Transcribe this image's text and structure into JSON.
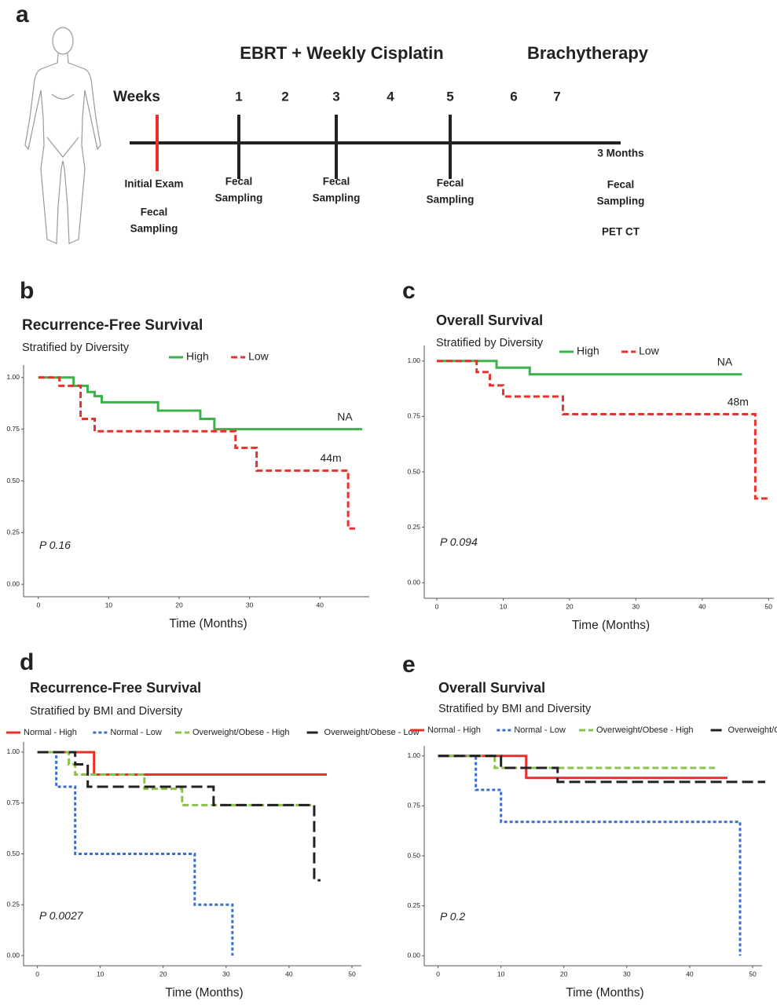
{
  "timeline": {
    "panel": "a",
    "phase_1": "EBRT + Weekly Cisplatin",
    "phase_2": "Brachytherapy",
    "weeks_label": "Weeks",
    "weeks": [
      1,
      2,
      3,
      4,
      5,
      6,
      7
    ],
    "events": [
      {
        "color": "#e8312a",
        "labels": [
          [
            "Initial Exam"
          ],
          [
            "Fecal",
            "Sampling"
          ]
        ]
      },
      {
        "color": "#222222",
        "labels": [
          [
            "Fecal",
            "Sampling"
          ]
        ]
      },
      {
        "color": "#222222",
        "labels": [
          [
            "Fecal",
            "Sampling"
          ]
        ]
      },
      {
        "color": "#222222",
        "labels": [
          [
            "Fecal",
            "Sampling"
          ]
        ]
      },
      {
        "labels": [
          [
            "3 Months"
          ],
          [
            "Fecal",
            "Sampling"
          ],
          [
            "PET CT"
          ]
        ]
      }
    ]
  },
  "chart_data": [
    {
      "type": "step",
      "panel": "b",
      "title": "Recurrence-Free Survival",
      "subtitle": "Stratified by Diversity",
      "x_label": "Time (Months)",
      "p_label": "P 0.16",
      "grid": false,
      "xlim": [
        -2.1,
        47
      ],
      "ylim": [
        -0.06,
        1.06
      ],
      "xticks": [
        0,
        10,
        20,
        30,
        40
      ],
      "yticks": [
        {
          "value": 0,
          "label": "0.00"
        },
        {
          "value": 0.25,
          "label": "0.25"
        },
        {
          "value": 0.5,
          "label": "0.50"
        },
        {
          "value": 0.75,
          "label": "0.75"
        },
        {
          "value": 1,
          "label": "1.00"
        }
      ],
      "series": [
        {
          "name": "High",
          "color": "#3cb34a",
          "dash": "solid",
          "end_label": "NA",
          "x": [
            0,
            5,
            7,
            8,
            9,
            17,
            23,
            25,
            46
          ],
          "values": [
            1,
            0.96,
            0.93,
            0.91,
            0.88,
            0.84,
            0.8,
            0.75,
            0.75
          ]
        },
        {
          "name": "Low",
          "color": "#e8312a",
          "dash": "dashed",
          "end_label": "44m",
          "x": [
            0,
            3,
            6,
            8,
            28,
            31,
            44,
            45
          ],
          "values": [
            1,
            0.96,
            0.8,
            0.74,
            0.66,
            0.55,
            0.27,
            0.27
          ]
        }
      ]
    },
    {
      "type": "step",
      "panel": "c",
      "title": "Overall Survival",
      "subtitle": "Stratified by Diversity",
      "x_label": "Time (Months)",
      "p_label": "P 0.094",
      "grid": false,
      "xlim": [
        -1.9,
        50.8
      ],
      "ylim": [
        -0.07,
        1.07
      ],
      "xticks": [
        0,
        10,
        20,
        30,
        40,
        50
      ],
      "yticks": [
        {
          "value": 0,
          "label": "0.00"
        },
        {
          "value": 0.25,
          "label": "0.25"
        },
        {
          "value": 0.5,
          "label": "0.50"
        },
        {
          "value": 0.75,
          "label": "0.75"
        },
        {
          "value": 1,
          "label": "1.00"
        }
      ],
      "series": [
        {
          "name": "High",
          "color": "#3cb34a",
          "dash": "solid",
          "end_label": "NA",
          "x": [
            0,
            9,
            14,
            46
          ],
          "values": [
            1,
            0.97,
            0.94,
            0.94
          ]
        },
        {
          "name": "Low",
          "color": "#e8312a",
          "dash": "dashed",
          "end_label": "48m",
          "x": [
            0,
            6,
            8,
            10,
            19,
            48,
            50
          ],
          "values": [
            1,
            0.95,
            0.89,
            0.84,
            0.76,
            0.38,
            0.38
          ]
        }
      ]
    },
    {
      "type": "step",
      "panel": "d",
      "title": "Recurrence-Free Survival",
      "subtitle": "Stratified by BMI and Diversity",
      "x_label": "Time (Months)",
      "p_label": "P 0.0027",
      "grid": false,
      "xlim": [
        -2.2,
        51.5
      ],
      "ylim": [
        -0.05,
        1.05
      ],
      "xticks": [
        0,
        10,
        20,
        30,
        40,
        50
      ],
      "yticks": [
        {
          "value": 0,
          "label": "0.00"
        },
        {
          "value": 0.25,
          "label": "0.25"
        },
        {
          "value": 0.5,
          "label": "0.50"
        },
        {
          "value": 0.75,
          "label": "0.75"
        },
        {
          "value": 1,
          "label": "1.00"
        }
      ],
      "series": [
        {
          "name": "Normal - High",
          "color": "#e8312a",
          "dash": "solid",
          "x": [
            0,
            9,
            46
          ],
          "values": [
            1,
            0.89,
            0.89
          ]
        },
        {
          "name": "Normal - Low",
          "color": "#3b6fc4",
          "dash": "dotted",
          "x": [
            0,
            3,
            6,
            25,
            31
          ],
          "values": [
            1,
            0.83,
            0.5,
            0.25,
            0
          ]
        },
        {
          "name": "Overweight/Obese - High",
          "color": "#8bc34a",
          "dash": "dashed",
          "x": [
            0,
            5,
            6,
            17,
            23,
            44
          ],
          "values": [
            1,
            0.94,
            0.89,
            0.82,
            0.74,
            0.74
          ]
        },
        {
          "name": "Overweight/Obese - Low",
          "color": "#222222",
          "dash": "longdash",
          "x": [
            0,
            6,
            8,
            28,
            44,
            45
          ],
          "values": [
            1,
            0.94,
            0.83,
            0.74,
            0.37,
            0.37
          ]
        }
      ]
    },
    {
      "type": "step",
      "panel": "e",
      "title": "Overall Survival",
      "subtitle": "Stratified by BMI and Diversity",
      "x_label": "Time (Months)",
      "p_label": "P 0.2",
      "grid": false,
      "xlim": [
        -2.2,
        51.5
      ],
      "ylim": [
        -0.05,
        1.05
      ],
      "xticks": [
        0,
        10,
        20,
        30,
        40,
        50
      ],
      "yticks": [
        {
          "value": 0,
          "label": "0.00"
        },
        {
          "value": 0.25,
          "label": "0.25"
        },
        {
          "value": 0.5,
          "label": "0.50"
        },
        {
          "value": 0.75,
          "label": "0.75"
        },
        {
          "value": 1,
          "label": "1.00"
        }
      ],
      "series": [
        {
          "name": "Normal - High",
          "color": "#e8312a",
          "dash": "solid",
          "x": [
            0,
            14,
            46
          ],
          "values": [
            1,
            0.89,
            0.89
          ]
        },
        {
          "name": "Normal - Low",
          "color": "#3b6fc4",
          "dash": "dotted",
          "x": [
            0,
            6,
            10,
            48
          ],
          "values": [
            1,
            0.83,
            0.67,
            0
          ]
        },
        {
          "name": "Overweight/Obese - High",
          "color": "#8bc34a",
          "dash": "dashed",
          "x": [
            0,
            9,
            44
          ],
          "values": [
            1,
            0.94,
            0.94
          ]
        },
        {
          "name": "Overweight/Obese - Low",
          "color": "#222222",
          "dash": "longdash",
          "x": [
            0,
            10,
            19,
            52
          ],
          "values": [
            1,
            0.94,
            0.87,
            0.87
          ]
        }
      ]
    }
  ]
}
